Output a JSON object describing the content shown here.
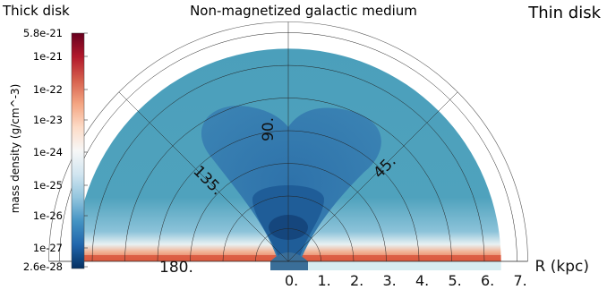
{
  "header": {
    "title": "Non-magnetized galactic medium",
    "left_label": "Thick disk",
    "right_label": "Thin disk"
  },
  "colorbar": {
    "title": "mass density  (g/cm^-3)",
    "ticks": [
      "5.8e-21",
      "1e-21",
      "1e-22",
      "1e-23",
      "1e-24",
      "1e-25",
      "1e-26",
      "1e-27",
      "2.6e-28"
    ],
    "colors": [
      "#67001f",
      "#b2182b",
      "#d6604d",
      "#f4a582",
      "#fddbc7",
      "#f7f7f7",
      "#d1e5f0",
      "#92c5de",
      "#4393c3",
      "#2166ac",
      "#053061"
    ]
  },
  "chart_data": {
    "type": "heatmap",
    "coordinate_system": "polar",
    "radial_axis": {
      "label": "R (kpc)",
      "ticks": [
        "0.",
        "1.",
        "2.",
        "3.",
        "4.",
        "5.",
        "6.",
        "7."
      ],
      "range": [
        0,
        7
      ]
    },
    "angular_axis": {
      "ticks": [
        "45.",
        "90.",
        "135.",
        "180."
      ],
      "range": [
        0,
        180
      ]
    },
    "colorscale": {
      "quantity": "mass density",
      "min": 2.6e-28,
      "max": 5.8e-21,
      "scale": "log"
    }
  }
}
